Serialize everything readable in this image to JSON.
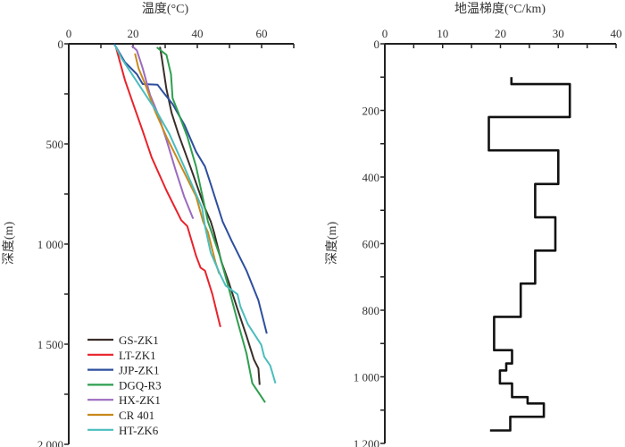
{
  "chart_data": [
    {
      "type": "line",
      "title": "温度(°C)",
      "ylabel": "深度(m)",
      "x_axis_position": "top",
      "y_inverted": true,
      "xlim": [
        0,
        70
      ],
      "ylim": [
        0,
        2000
      ],
      "xticks": [
        {
          "v": 0,
          "label": "0"
        },
        {
          "v": 20,
          "label": "20"
        },
        {
          "v": 40,
          "label": "40"
        },
        {
          "v": 60,
          "label": "60"
        }
      ],
      "yticks": [
        {
          "v": 0,
          "label": "0"
        },
        {
          "v": 500,
          "label": "500"
        },
        {
          "v": 1000,
          "label": "1 000"
        },
        {
          "v": 1500,
          "label": "1 500"
        },
        {
          "v": 2000,
          "label": "2 000"
        }
      ],
      "grid": false,
      "legend_position": "bottom-left",
      "series": [
        {
          "name": "GS-ZK1",
          "color": "#3a2e2a",
          "points": [
            [
              28.4,
              15
            ],
            [
              29,
              77
            ],
            [
              30.4,
              226
            ],
            [
              32,
              345
            ],
            [
              34.1,
              450
            ],
            [
              37.8,
              613
            ],
            [
              42.4,
              821
            ],
            [
              44.2,
              888
            ],
            [
              45.2,
              941
            ],
            [
              47.5,
              1089
            ],
            [
              49.8,
              1192
            ],
            [
              52.5,
              1325
            ],
            [
              55.3,
              1459
            ],
            [
              57.6,
              1577
            ],
            [
              59,
              1621
            ],
            [
              59.4,
              1703
            ]
          ]
        },
        {
          "name": "LT-ZK1",
          "color": "#e8232b",
          "points": [
            [
              14.7,
              18
            ],
            [
              15.7,
              77
            ],
            [
              17.5,
              182
            ],
            [
              20.7,
              330
            ],
            [
              23,
              435
            ],
            [
              25.8,
              568
            ],
            [
              30.4,
              732
            ],
            [
              35,
              881
            ],
            [
              36.9,
              911
            ],
            [
              39.6,
              1059
            ],
            [
              41,
              1118
            ],
            [
              42.4,
              1133
            ],
            [
              44.7,
              1251
            ],
            [
              46.5,
              1370
            ],
            [
              47.2,
              1414
            ]
          ]
        },
        {
          "name": "JJP-ZK1",
          "color": "#2e4f9e",
          "points": [
            [
              14.1,
              0
            ],
            [
              17.5,
              92
            ],
            [
              21.2,
              152
            ],
            [
              23,
              201
            ],
            [
              27.6,
              204
            ],
            [
              29,
              234
            ],
            [
              32.3,
              301
            ],
            [
              36,
              405
            ],
            [
              39.6,
              539
            ],
            [
              42.4,
              613
            ],
            [
              44.2,
              702
            ],
            [
              47.9,
              888
            ],
            [
              50.7,
              985
            ],
            [
              55.3,
              1133
            ],
            [
              59,
              1281
            ],
            [
              61.6,
              1447
            ]
          ]
        },
        {
          "name": "DGQ-R3",
          "color": "#2f9e4f",
          "points": [
            [
              27.4,
              18
            ],
            [
              30.4,
              55
            ],
            [
              31.8,
              152
            ],
            [
              32.3,
              271
            ],
            [
              34.1,
              345
            ],
            [
              36.9,
              464
            ],
            [
              39.6,
              613
            ],
            [
              43.3,
              888
            ],
            [
              47,
              1059
            ],
            [
              49.8,
              1222
            ],
            [
              52.5,
              1385
            ],
            [
              55.3,
              1547
            ],
            [
              57.1,
              1695
            ],
            [
              59,
              1740
            ],
            [
              61.1,
              1791
            ]
          ]
        },
        {
          "name": "HX-ZK1",
          "color": "#9b6bbf",
          "points": [
            [
              19.6,
              10
            ],
            [
              21.2,
              33
            ],
            [
              23,
              122
            ],
            [
              25.3,
              256
            ],
            [
              27.6,
              345
            ],
            [
              30.4,
              479
            ],
            [
              33.2,
              628
            ],
            [
              35.9,
              762
            ],
            [
              38.7,
              873
            ]
          ]
        },
        {
          "name": "CR 401",
          "color": "#c8891c",
          "points": [
            [
              20.6,
              48
            ],
            [
              21.7,
              122
            ],
            [
              24,
              211
            ],
            [
              26.7,
              330
            ],
            [
              30.4,
              464
            ],
            [
              35,
              613
            ],
            [
              39.6,
              762
            ],
            [
              41.8,
              888
            ],
            [
              43.3,
              941
            ],
            [
              45.6,
              1089
            ],
            [
              46.8,
              1148
            ]
          ]
        },
        {
          "name": "HT-ZK6",
          "color": "#4bbdbd",
          "points": [
            [
              14.3,
              6
            ],
            [
              16.6,
              77
            ],
            [
              22.1,
              211
            ],
            [
              27.6,
              345
            ],
            [
              31.3,
              450
            ],
            [
              35.9,
              613
            ],
            [
              41.5,
              821
            ],
            [
              42.4,
              911
            ],
            [
              44.2,
              1044
            ],
            [
              47,
              1148
            ],
            [
              48.8,
              1207
            ],
            [
              52.5,
              1251
            ],
            [
              53.4,
              1311
            ],
            [
              55.7,
              1399
            ],
            [
              59.9,
              1503
            ],
            [
              60.8,
              1562
            ],
            [
              62.7,
              1607
            ],
            [
              64.3,
              1695
            ]
          ]
        }
      ]
    },
    {
      "type": "line",
      "title": "地温梯度(°C/km)",
      "ylabel": "深度(m)",
      "x_axis_position": "top",
      "y_inverted": true,
      "xlim": [
        0,
        40
      ],
      "ylim": [
        0,
        1200
      ],
      "xticks": [
        {
          "v": 0,
          "label": "0"
        },
        {
          "v": 10,
          "label": "10"
        },
        {
          "v": 20,
          "label": "20"
        },
        {
          "v": 30,
          "label": "30"
        },
        {
          "v": 40,
          "label": "40"
        }
      ],
      "yticks": [
        {
          "v": 0,
          "label": "0"
        },
        {
          "v": 200,
          "label": "200"
        },
        {
          "v": 400,
          "label": "400"
        },
        {
          "v": 600,
          "label": "600"
        },
        {
          "v": 800,
          "label": "800"
        },
        {
          "v": 1000,
          "label": "1 000"
        },
        {
          "v": 1200,
          "label": "1 200"
        }
      ],
      "grid": false,
      "series": [
        {
          "color": "#111111",
          "step": true,
          "points": [
            [
              21.9,
              100
            ],
            [
              21.9,
              121
            ],
            [
              32,
              121
            ],
            [
              32,
              220
            ],
            [
              18,
              220
            ],
            [
              18,
              320
            ],
            [
              30,
              320
            ],
            [
              30,
              421
            ],
            [
              26,
              421
            ],
            [
              26,
              521
            ],
            [
              29.5,
              521
            ],
            [
              29.5,
              621
            ],
            [
              26,
              621
            ],
            [
              26,
              720
            ],
            [
              23.5,
              720
            ],
            [
              23.5,
              820
            ],
            [
              18.9,
              820
            ],
            [
              18.9,
              920
            ],
            [
              22,
              920
            ],
            [
              22,
              960
            ],
            [
              21,
              960
            ],
            [
              21,
              981
            ],
            [
              19.9,
              981
            ],
            [
              19.9,
              1020
            ],
            [
              22,
              1020
            ],
            [
              22,
              1061
            ],
            [
              24.7,
              1061
            ],
            [
              24.7,
              1080
            ],
            [
              27.5,
              1080
            ],
            [
              27.5,
              1120
            ],
            [
              21.7,
              1120
            ],
            [
              21.7,
              1161
            ],
            [
              18.2,
              1161
            ]
          ]
        }
      ]
    }
  ]
}
